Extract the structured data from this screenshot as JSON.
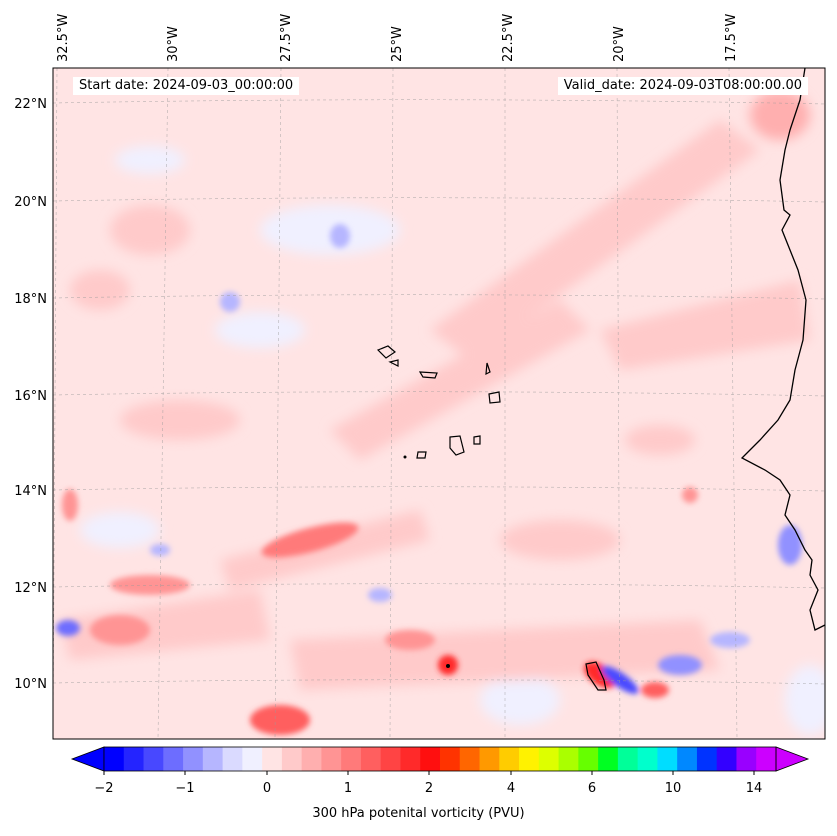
{
  "header": {
    "start_label": "Start date: 2024-09-03_00:00:00",
    "valid_label": "Valid_date: 2024-09-03T08:00:00.00"
  },
  "map": {
    "lon_labels": [
      "32.5°W",
      "30°W",
      "27.5°W",
      "25°W",
      "22.5°W",
      "20°W",
      "17.5°W"
    ],
    "lat_labels": [
      "22°N",
      "20°N",
      "18°N",
      "16°N",
      "14°N",
      "12°N",
      "10°N"
    ],
    "gridlines": true
  },
  "colorbar": {
    "title": "300 hPa potenital vorticity (PVU)",
    "tick_labels": [
      "−2",
      "−1",
      "0",
      "1",
      "2",
      "4",
      "6",
      "10",
      "14"
    ],
    "colors": [
      "#0000ff",
      "#2424ff",
      "#4848ff",
      "#6d6dff",
      "#9191ff",
      "#b6b6ff",
      "#dadaff",
      "#f0f0ff",
      "#ffe4e4",
      "#ffcaca",
      "#ffafaf",
      "#ff9494",
      "#ff7a7a",
      "#ff5f5f",
      "#ff4444",
      "#ff2a2a",
      "#ff0f0f",
      "#ff3300",
      "#ff6600",
      "#ff9900",
      "#ffcc00",
      "#fff200",
      "#ddff00",
      "#aaff00",
      "#66ff00",
      "#00ff22",
      "#00ff99",
      "#00ffcc",
      "#00ddff",
      "#0088ff",
      "#0033ff",
      "#3300ff",
      "#9900ff",
      "#cc00ff"
    ],
    "extend": "both"
  }
}
